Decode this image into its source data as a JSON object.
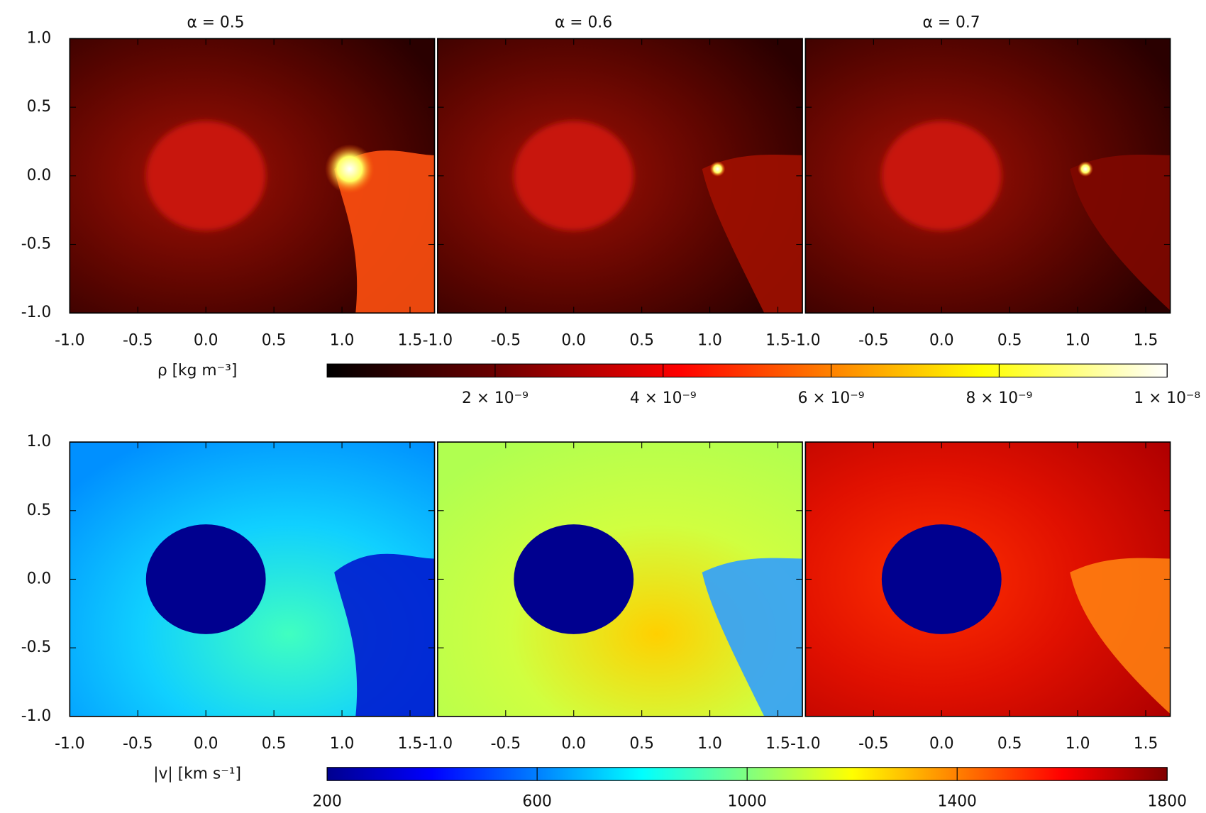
{
  "chart_data": {
    "type": "heatmap",
    "titles": [
      "α = 0.5",
      "α = 0.6",
      "α = 0.7"
    ],
    "xlim": [
      -1,
      1.68
    ],
    "ylim": [
      -1,
      1
    ],
    "xticks": [
      {
        "value": -1,
        "label": "-1.0"
      },
      {
        "value": -0.5,
        "label": "-0.5"
      },
      {
        "value": 0,
        "label": "0.0"
      },
      {
        "value": 0.5,
        "label": "0.5"
      },
      {
        "value": 1,
        "label": "1.0"
      },
      {
        "value": 1.5,
        "label": "1.5"
      }
    ],
    "yticks": [
      {
        "value": -1,
        "label": "-1.0"
      },
      {
        "value": -0.5,
        "label": "-0.5"
      },
      {
        "value": 0,
        "label": "0.0"
      },
      {
        "value": 0.5,
        "label": "0.5"
      },
      {
        "value": 1,
        "label": "1.0"
      }
    ],
    "rows": [
      {
        "colorbar_label": "ρ [kg m⁻³]",
        "clim": [
          0,
          1e-08
        ],
        "cticks": [
          {
            "value": 2e-09,
            "label": "2 × 10⁻⁹"
          },
          {
            "value": 4e-09,
            "label": "4 × 10⁻⁹"
          },
          {
            "value": 6e-09,
            "label": "6 × 10⁻⁹"
          },
          {
            "value": 8e-09,
            "label": "8 × 10⁻⁹"
          },
          {
            "value": 1e-08,
            "label": "1 × 10⁻⁸"
          }
        ]
      },
      {
        "colorbar_label": "|v| [km s⁻¹]",
        "clim": [
          200,
          1800
        ],
        "cticks": [
          200,
          600,
          1000,
          1400,
          1800
        ]
      }
    ]
  }
}
